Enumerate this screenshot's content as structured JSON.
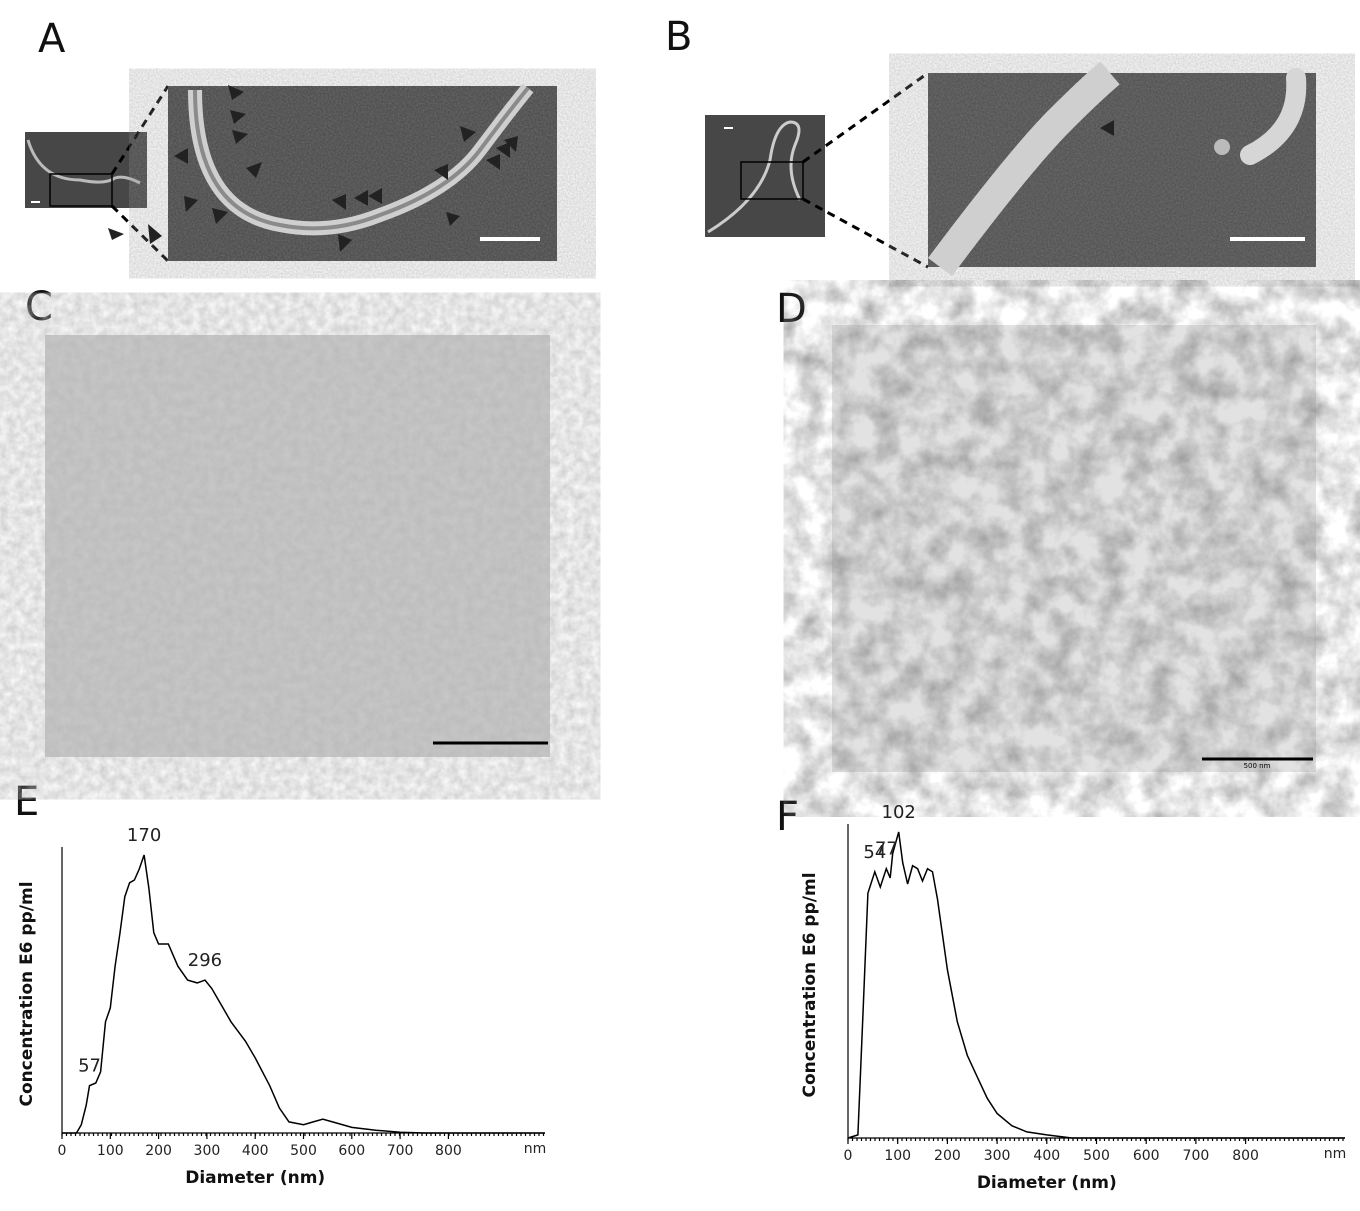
{
  "panel_labels": [
    "A",
    "B",
    "C",
    "D",
    "E",
    "F"
  ],
  "scale_bar_labels": {
    "D": "500 nm"
  },
  "chart_data": [
    {
      "type": "line",
      "x_label": "Diameter (nm)",
      "y_label": "Concentration E6 pp/ml",
      "x_unit": "nm",
      "xlim": [
        0,
        1000
      ],
      "xticks": [
        0,
        100,
        200,
        300,
        400,
        500,
        600,
        700,
        800
      ],
      "ylim": [
        0,
        100
      ],
      "color": "#000000",
      "peaks": [
        57,
        170,
        296
      ],
      "x": [
        0,
        30,
        40,
        50,
        57,
        70,
        80,
        90,
        100,
        110,
        120,
        130,
        140,
        150,
        160,
        170,
        180,
        190,
        200,
        220,
        240,
        260,
        280,
        296,
        310,
        330,
        350,
        380,
        400,
        430,
        450,
        470,
        500,
        520,
        540,
        560,
        600,
        650,
        700,
        750,
        1000
      ],
      "values": [
        0,
        0,
        3,
        10,
        17,
        18,
        22,
        40,
        45,
        60,
        72,
        85,
        90,
        91,
        95,
        100,
        88,
        72,
        68,
        68,
        60,
        55,
        54,
        55,
        52,
        46,
        40,
        33,
        27,
        17,
        9,
        4,
        3,
        4,
        5,
        4,
        2,
        1,
        0.3,
        0,
        0
      ]
    },
    {
      "type": "line",
      "x_label": "Diameter (nm)",
      "y_label": "Concentration E6 pp/ml",
      "x_unit": "nm",
      "xlim": [
        0,
        1000
      ],
      "xticks": [
        0,
        100,
        200,
        300,
        400,
        500,
        600,
        700,
        800
      ],
      "ylim": [
        0,
        100
      ],
      "color": "#000000",
      "peaks": [
        54,
        77,
        102
      ],
      "x": [
        0,
        20,
        30,
        40,
        54,
        65,
        77,
        85,
        90,
        102,
        110,
        120,
        130,
        140,
        150,
        160,
        170,
        180,
        200,
        220,
        240,
        260,
        280,
        300,
        330,
        360,
        400,
        450,
        1000
      ],
      "values": [
        0,
        1,
        40,
        80,
        87,
        82,
        88,
        85,
        93,
        100,
        90,
        83,
        89,
        88,
        84,
        88,
        87,
        78,
        55,
        38,
        27,
        20,
        13,
        8,
        4,
        2,
        1,
        0,
        0
      ]
    }
  ]
}
